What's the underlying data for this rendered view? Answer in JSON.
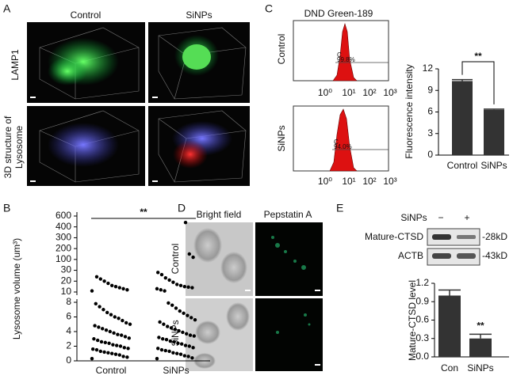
{
  "panels": {
    "A": {
      "letter": "A",
      "columns": [
        "Control",
        "SiNPs"
      ],
      "row_labels": {
        "lamp1": "LAMP1",
        "structure": [
          "3D structure of",
          "Lysosome"
        ]
      }
    },
    "B": {
      "letter": "B"
    },
    "C": {
      "letter": "C",
      "title": "DND Green-189",
      "plots": [
        {
          "label": "Control",
          "gate": "C",
          "percent": "99.8%"
        },
        {
          "label": "SiNPs",
          "gate": "C",
          "percent": "94.0%"
        }
      ],
      "x_tick_labels": [
        "10⁰",
        "10¹",
        "10²",
        "10³"
      ]
    },
    "D": {
      "letter": "D",
      "columns": [
        "Bright field",
        "Pepstatin A"
      ],
      "rows": [
        "Control",
        "SiNPs"
      ]
    },
    "E": {
      "letter": "E",
      "blot": {
        "treatment": "SiNPs",
        "lanes": [
          "−",
          "+"
        ],
        "bands": [
          {
            "name": "Mature-CTSD",
            "size": "-28kD"
          },
          {
            "name": "ACTB",
            "size": "-43kD"
          }
        ]
      }
    }
  },
  "chart_data": [
    {
      "type": "strip",
      "y_label": "Lysosome volume (um³)",
      "categories": [
        "Control",
        "SiNPs"
      ],
      "groups": [
        [
          0.3,
          0.5,
          0.6,
          0.8,
          0.9,
          1.0,
          1.1,
          1.2,
          1.3,
          1.5,
          1.6,
          1.7,
          1.8,
          2.0,
          2.1,
          2.2,
          2.4,
          2.5,
          2.6,
          2.8,
          3.0,
          3.1,
          3.3,
          3.5,
          3.6,
          3.8,
          4.0,
          4.2,
          4.4,
          4.6,
          4.8,
          5.0,
          5.2,
          5.5,
          5.8,
          6.0,
          6.3,
          6.6,
          7.0,
          7.4,
          7.8,
          11,
          12,
          13,
          14,
          15,
          16,
          18,
          20,
          22,
          24
        ],
        [
          0.3,
          0.4,
          0.6,
          0.7,
          0.9,
          1.0,
          1.1,
          1.3,
          1.4,
          1.5,
          1.7,
          1.8,
          2.0,
          2.1,
          2.3,
          2.4,
          2.6,
          2.7,
          2.9,
          3.0,
          3.2,
          3.4,
          3.5,
          3.7,
          3.9,
          4.1,
          4.3,
          4.5,
          4.7,
          5.0,
          5.3,
          5.6,
          5.9,
          6.2,
          6.5,
          6.8,
          7.2,
          7.6,
          7.9,
          11,
          12,
          13,
          14,
          14.5,
          15,
          16,
          17,
          19,
          21,
          23,
          26,
          28,
          120,
          150,
          480
        ]
      ],
      "ylim": [
        0,
        8
      ],
      "yticks": [
        0,
        2,
        4,
        6,
        8
      ],
      "ylim_upper": [
        10,
        600
      ],
      "yticks_upper": [
        10,
        20,
        30,
        100,
        200,
        300,
        400,
        600
      ],
      "color": "#000000",
      "annotations": [
        "**"
      ]
    },
    {
      "type": "bar",
      "y_label": "Fluorescence intensity",
      "categories": [
        "Control",
        "SiNPs"
      ],
      "values": [
        10.3,
        6.3
      ],
      "errors": [
        0.2,
        0.1
      ],
      "color": "#333333",
      "ylim": [
        0,
        12
      ],
      "yticks": [
        0,
        3,
        6,
        9,
        12
      ],
      "annotations": [
        "**"
      ]
    },
    {
      "type": "bar",
      "y_label": "Mature-CTSD level",
      "categories": [
        "Con",
        "SiNPs"
      ],
      "values": [
        1.0,
        0.3
      ],
      "errors": [
        0.09,
        0.07
      ],
      "color": "#333333",
      "ylim": [
        0,
        1.2
      ],
      "yticks": [
        {
          "value": 0,
          "label": "0.0"
        },
        0.3,
        0.6,
        0.9,
        1.2
      ],
      "annotations": [
        "**"
      ]
    }
  ]
}
